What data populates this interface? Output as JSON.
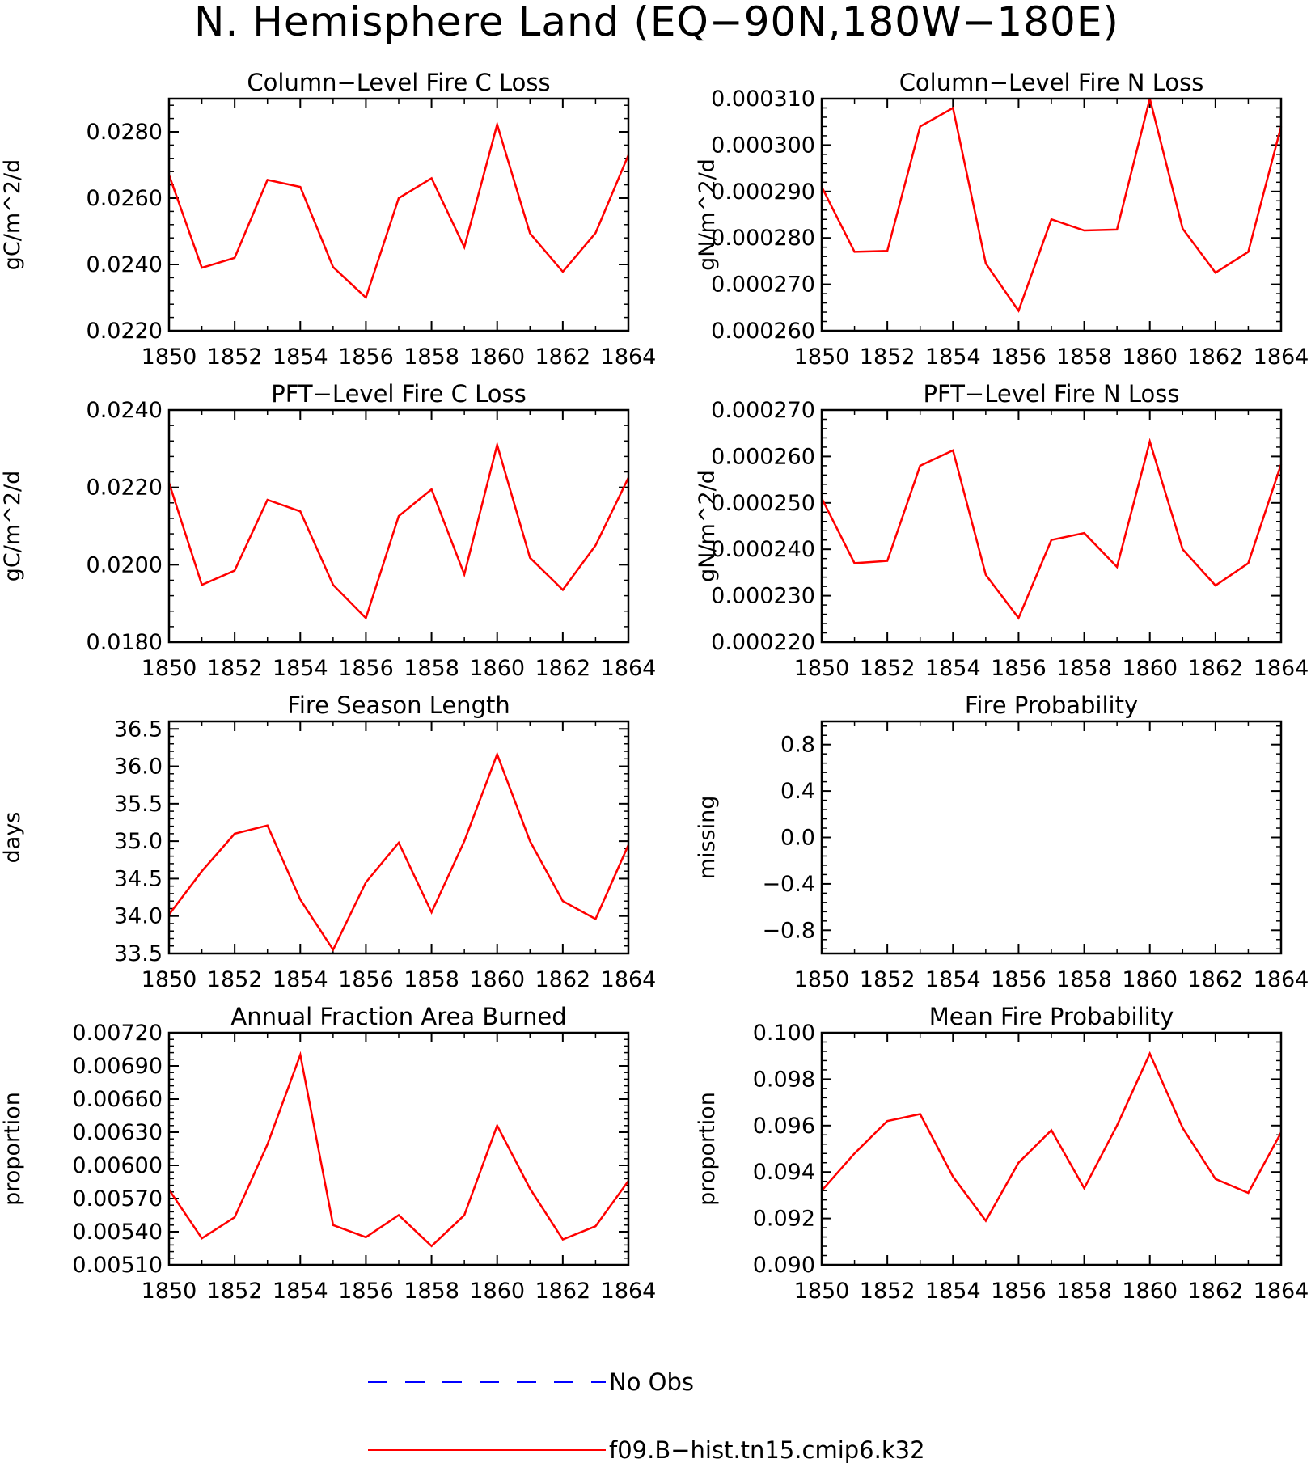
{
  "title": "N. Hemisphere Land (EQ−90N,180W−180E)",
  "colors": {
    "series": "#ff0000",
    "obs": "#0000ff",
    "axis": "#000000",
    "background": "#ffffff"
  },
  "legend": {
    "entries": [
      {
        "label": "No Obs",
        "color": "#0000ff",
        "style": "dashed"
      },
      {
        "label": "f09.B−hist.tn15.cmip6.k32",
        "color": "#ff0000",
        "style": "solid"
      }
    ]
  },
  "chart_data": [
    {
      "type": "line",
      "title": "Column−Level Fire C Loss",
      "ylabel": "gC/m^2/d",
      "xlabel": "",
      "xlim": [
        1850,
        1864
      ],
      "xticks": [
        "1850",
        "1852",
        "1854",
        "1856",
        "1858",
        "1860",
        "1862",
        "1864"
      ],
      "ylim": [
        0.022,
        0.029
      ],
      "yticks": [
        "0.0220",
        "0.0240",
        "0.0260",
        "0.0280"
      ],
      "ytick_values": [
        0.022,
        0.024,
        0.026,
        0.028
      ],
      "grid": false,
      "x": [
        1850,
        1851,
        1852,
        1853,
        1854,
        1855,
        1856,
        1857,
        1858,
        1859,
        1860,
        1861,
        1862,
        1863,
        1864
      ],
      "series": [
        {
          "name": "f09.B−hist.tn15.cmip6.k32",
          "values": [
            0.0267,
            0.0239,
            0.0242,
            0.02655,
            0.02634,
            0.02392,
            0.023,
            0.026,
            0.0266,
            0.02452,
            0.02822,
            0.02494,
            0.02378,
            0.02495,
            0.0273
          ]
        }
      ]
    },
    {
      "type": "line",
      "title": "Column−Level Fire N Loss",
      "ylabel": "gN/m^2/d",
      "xlabel": "",
      "xlim": [
        1850,
        1864
      ],
      "xticks": [
        "1850",
        "1852",
        "1854",
        "1856",
        "1858",
        "1860",
        "1862",
        "1864"
      ],
      "ylim": [
        0.00026,
        0.00031
      ],
      "yticks": [
        "0.000260",
        "0.000270",
        "0.000280",
        "0.000290",
        "0.000300",
        "0.000310"
      ],
      "ytick_values": [
        0.00026,
        0.00027,
        0.00028,
        0.00029,
        0.0003,
        0.00031
      ],
      "grid": false,
      "x": [
        1850,
        1851,
        1852,
        1853,
        1854,
        1855,
        1856,
        1857,
        1858,
        1859,
        1860,
        1861,
        1862,
        1863,
        1864
      ],
      "series": [
        {
          "name": "f09.B−hist.tn15.cmip6.k32",
          "values": [
            0.000291,
            0.000277,
            0.0002772,
            0.000304,
            0.000308,
            0.0002745,
            0.0002643,
            0.000284,
            0.0002816,
            0.0002818,
            0.00031,
            0.000282,
            0.0002725,
            0.000277,
            0.000304
          ]
        }
      ]
    },
    {
      "type": "line",
      "title": "PFT−Level Fire C Loss",
      "ylabel": "gC/m^2/d",
      "xlabel": "",
      "xlim": [
        1850,
        1864
      ],
      "xticks": [
        "1850",
        "1852",
        "1854",
        "1856",
        "1858",
        "1860",
        "1862",
        "1864"
      ],
      "ylim": [
        0.018,
        0.024
      ],
      "yticks": [
        "0.0180",
        "0.0200",
        "0.0220",
        "0.0240"
      ],
      "ytick_values": [
        0.018,
        0.02,
        0.022,
        0.024
      ],
      "grid": false,
      "x": [
        1850,
        1851,
        1852,
        1853,
        1854,
        1855,
        1856,
        1857,
        1858,
        1859,
        1860,
        1861,
        1862,
        1863,
        1864
      ],
      "series": [
        {
          "name": "f09.B−hist.tn15.cmip6.k32",
          "values": [
            0.02212,
            0.01948,
            0.01985,
            0.02168,
            0.02138,
            0.01948,
            0.01862,
            0.02126,
            0.02195,
            0.01975,
            0.0231,
            0.02018,
            0.01935,
            0.0205,
            0.02225
          ]
        }
      ]
    },
    {
      "type": "line",
      "title": "PFT−Level Fire N Loss",
      "ylabel": "gN/m^2/d",
      "xlabel": "",
      "xlim": [
        1850,
        1864
      ],
      "xticks": [
        "1850",
        "1852",
        "1854",
        "1856",
        "1858",
        "1860",
        "1862",
        "1864"
      ],
      "ylim": [
        0.00022,
        0.00027
      ],
      "yticks": [
        "0.000220",
        "0.000230",
        "0.000240",
        "0.000250",
        "0.000260",
        "0.000270"
      ],
      "ytick_values": [
        0.00022,
        0.00023,
        0.00024,
        0.00025,
        0.00026,
        0.00027
      ],
      "grid": false,
      "x": [
        1850,
        1851,
        1852,
        1853,
        1854,
        1855,
        1856,
        1857,
        1858,
        1859,
        1860,
        1861,
        1862,
        1863,
        1864
      ],
      "series": [
        {
          "name": "f09.B−hist.tn15.cmip6.k32",
          "values": [
            0.000251,
            0.000237,
            0.0002375,
            0.000258,
            0.0002613,
            0.0002345,
            0.0002252,
            0.000242,
            0.0002435,
            0.0002362,
            0.0002632,
            0.00024,
            0.0002322,
            0.000237,
            0.0002583
          ]
        }
      ]
    },
    {
      "type": "line",
      "title": "Fire Season Length",
      "ylabel": "days",
      "xlabel": "",
      "xlim": [
        1850,
        1864
      ],
      "xticks": [
        "1850",
        "1852",
        "1854",
        "1856",
        "1858",
        "1860",
        "1862",
        "1864"
      ],
      "ylim": [
        33.5,
        36.6
      ],
      "yticks": [
        "33.5",
        "34.0",
        "34.5",
        "35.0",
        "35.5",
        "36.0",
        "36.5"
      ],
      "ytick_values": [
        33.5,
        34.0,
        34.5,
        35.0,
        35.5,
        36.0,
        36.5
      ],
      "grid": false,
      "x": [
        1850,
        1851,
        1852,
        1853,
        1854,
        1855,
        1856,
        1857,
        1858,
        1859,
        1860,
        1861,
        1862,
        1863,
        1864
      ],
      "series": [
        {
          "name": "f09.B−hist.tn15.cmip6.k32",
          "values": [
            34.02,
            34.6,
            35.1,
            35.21,
            34.22,
            33.55,
            34.45,
            34.98,
            34.05,
            35.0,
            36.16,
            35.0,
            34.2,
            33.96,
            34.95
          ]
        }
      ]
    },
    {
      "type": "line",
      "title": "Fire Probability",
      "ylabel": "missing",
      "xlabel": "",
      "xlim": [
        1850,
        1864
      ],
      "xticks": [
        "1850",
        "1852",
        "1854",
        "1856",
        "1858",
        "1860",
        "1862",
        "1864"
      ],
      "ylim": [
        -1.0,
        1.0
      ],
      "yticks": [
        "−0.8",
        "−0.4",
        "0.0",
        "0.4",
        "0.8"
      ],
      "ytick_values": [
        -0.8,
        -0.4,
        0.0,
        0.4,
        0.8
      ],
      "grid": false,
      "x": [],
      "series": []
    },
    {
      "type": "line",
      "title": "Annual Fraction Area Burned",
      "ylabel": "proportion",
      "xlabel": "",
      "xlim": [
        1850,
        1864
      ],
      "xticks": [
        "1850",
        "1852",
        "1854",
        "1856",
        "1858",
        "1860",
        "1862",
        "1864"
      ],
      "ylim": [
        0.0051,
        0.0072
      ],
      "yticks": [
        "0.00510",
        "0.00540",
        "0.00570",
        "0.00600",
        "0.00630",
        "0.00660",
        "0.00690",
        "0.00720"
      ],
      "ytick_values": [
        0.0051,
        0.0054,
        0.0057,
        0.006,
        0.0063,
        0.0066,
        0.0069,
        0.0072
      ],
      "grid": false,
      "x": [
        1850,
        1851,
        1852,
        1853,
        1854,
        1855,
        1856,
        1857,
        1858,
        1859,
        1860,
        1861,
        1862,
        1863,
        1864
      ],
      "series": [
        {
          "name": "f09.B−hist.tn15.cmip6.k32",
          "values": [
            0.00578,
            0.00534,
            0.00553,
            0.00619,
            0.007,
            0.00546,
            0.00535,
            0.00555,
            0.00527,
            0.00555,
            0.00636,
            0.00579,
            0.00533,
            0.00545,
            0.00586
          ]
        }
      ]
    },
    {
      "type": "line",
      "title": "Mean Fire Probability",
      "ylabel": "proportion",
      "xlabel": "",
      "xlim": [
        1850,
        1864
      ],
      "xticks": [
        "1850",
        "1852",
        "1854",
        "1856",
        "1858",
        "1860",
        "1862",
        "1864"
      ],
      "ylim": [
        0.09,
        0.1
      ],
      "yticks": [
        "0.090",
        "0.092",
        "0.094",
        "0.096",
        "0.098",
        "0.100"
      ],
      "ytick_values": [
        0.09,
        0.092,
        0.094,
        0.096,
        0.098,
        0.1
      ],
      "grid": false,
      "x": [
        1850,
        1851,
        1852,
        1853,
        1854,
        1855,
        1856,
        1857,
        1858,
        1859,
        1860,
        1861,
        1862,
        1863,
        1864
      ],
      "series": [
        {
          "name": "f09.B−hist.tn15.cmip6.k32",
          "values": [
            0.0932,
            0.0948,
            0.0962,
            0.0965,
            0.0938,
            0.0919,
            0.0944,
            0.0958,
            0.0933,
            0.096,
            0.0991,
            0.0959,
            0.0937,
            0.0931,
            0.0957
          ]
        }
      ]
    }
  ]
}
